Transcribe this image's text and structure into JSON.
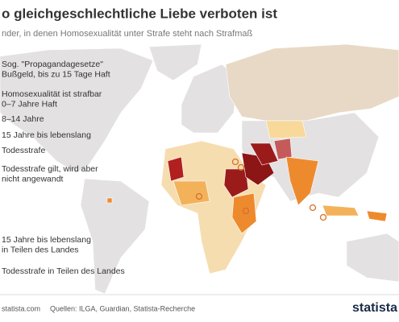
{
  "header": {
    "title": "o gleichgeschlechtliche Liebe verboten ist",
    "subtitle": "nder, in denen Homosexualität unter Strafe steht nach Strafmaß"
  },
  "legend": {
    "items": [
      {
        "lines": [
          "Sog. \"Propagandagesetze\"",
          "Bußgeld, bis zu 15 Tage Haft"
        ]
      },
      {
        "lines": [
          "Homosexualität ist strafbar",
          "0–7 Jahre Haft"
        ]
      },
      {
        "lines": [
          "8–14 Jahre"
        ]
      },
      {
        "lines": [
          "15 Jahre bis lebenslang"
        ]
      },
      {
        "lines": [
          "Todesstrafe"
        ]
      },
      {
        "lines": [
          "Todesstrafe gilt, wird aber",
          "nicht angewandt"
        ]
      },
      {
        "lines": [
          "15 Jahre bis lebenslang",
          "in Teilen des Landes"
        ]
      },
      {
        "lines": [
          "Todesstrafe in Teilen des Landes"
        ]
      }
    ]
  },
  "footer": {
    "site": "statista.com",
    "source": "Quellen: ILGA, Guardian, Statista-Recherche",
    "logo": "statista"
  }
}
